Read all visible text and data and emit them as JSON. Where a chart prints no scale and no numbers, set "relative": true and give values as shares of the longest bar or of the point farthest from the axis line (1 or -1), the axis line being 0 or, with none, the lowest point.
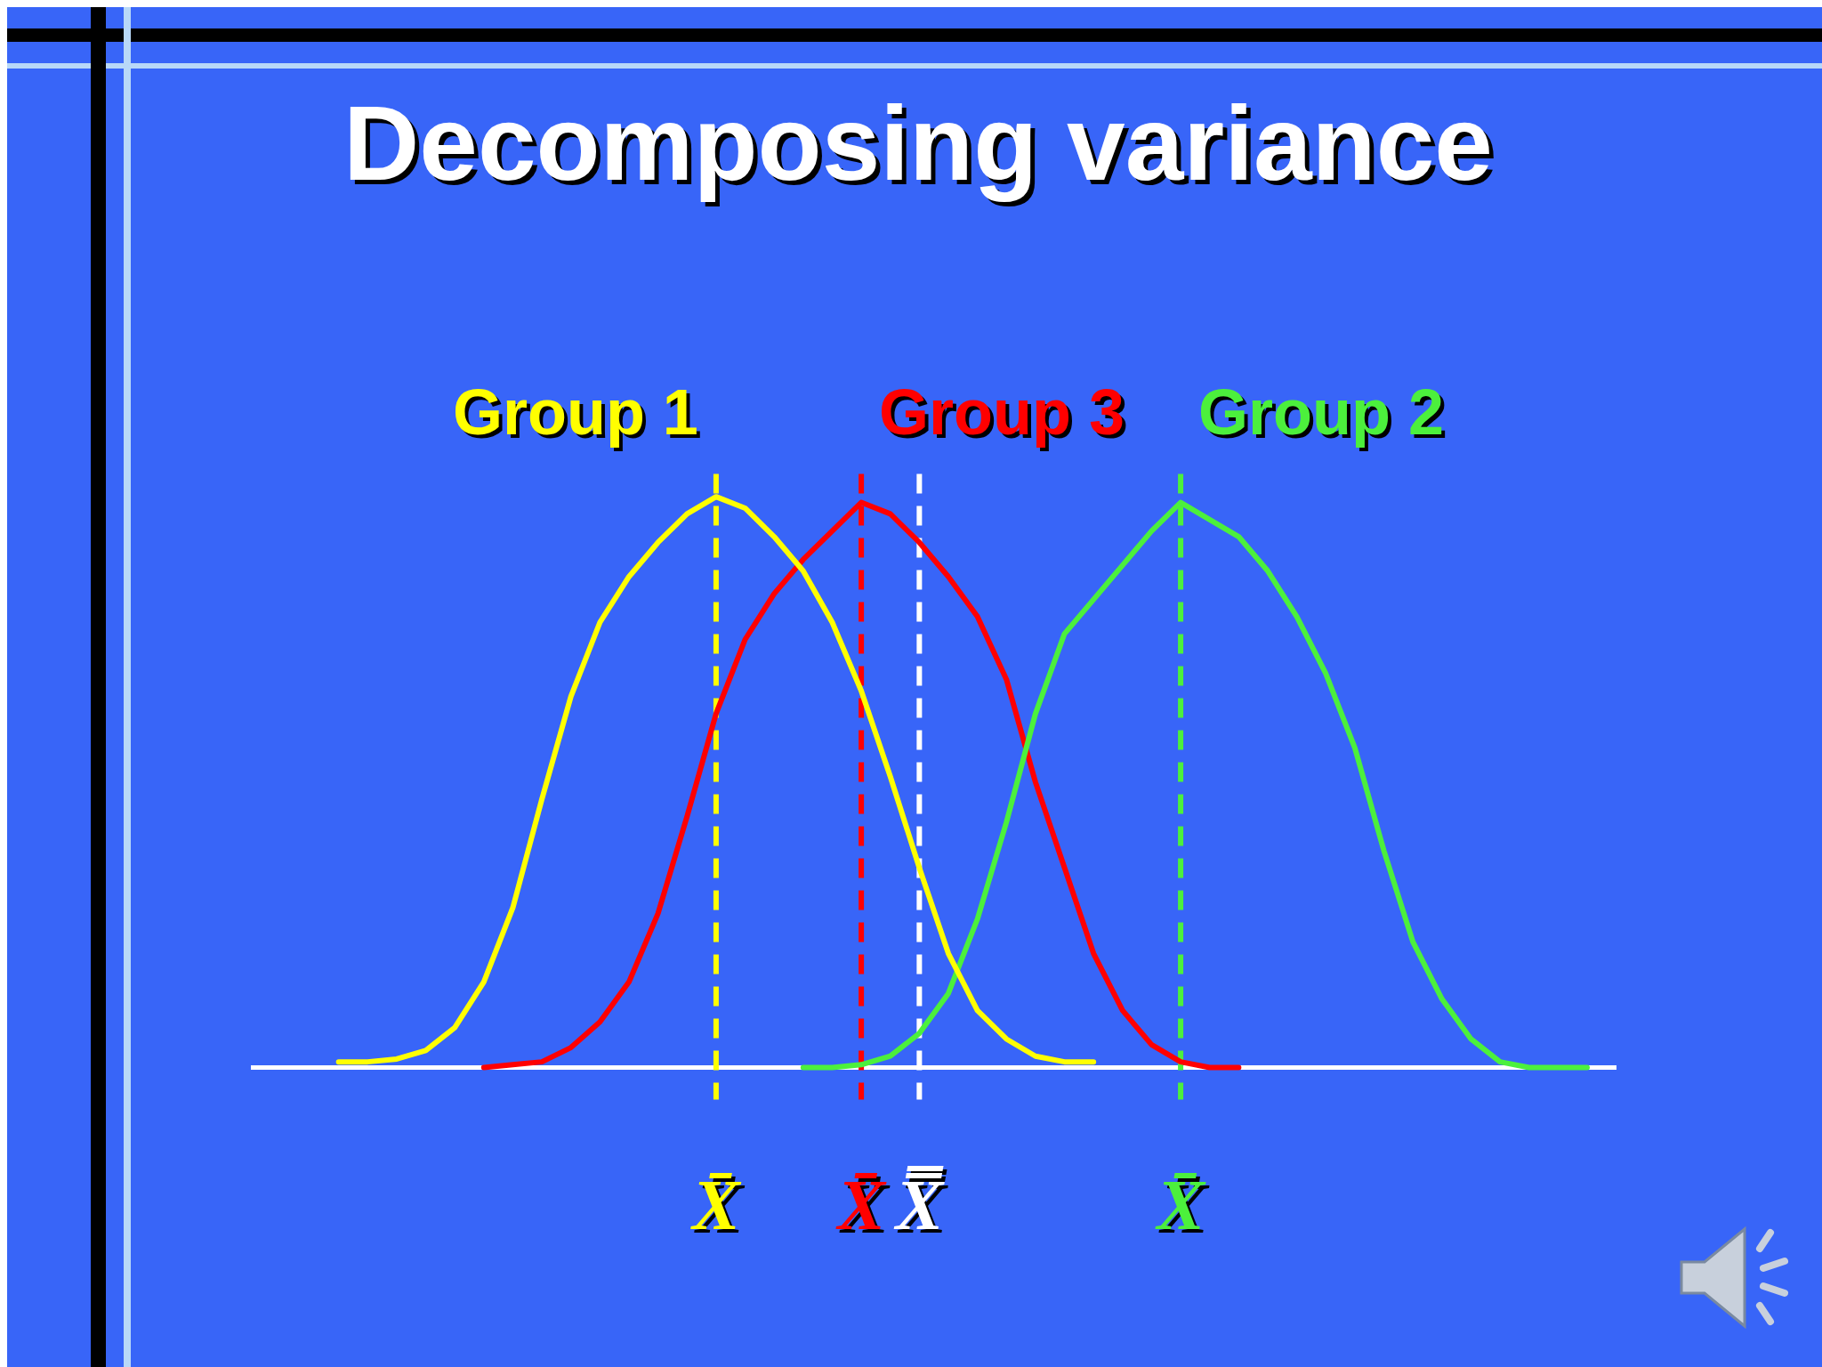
{
  "chart_data": {
    "type": "line",
    "title": "Decomposing variance",
    "relative": true,
    "tick_labels": false,
    "legend": false,
    "marker": "none",
    "categories": [
      null,
      null,
      null,
      null,
      null,
      null,
      null,
      null,
      null,
      null,
      null,
      null,
      null,
      null,
      null,
      null,
      null,
      null,
      null,
      null,
      null,
      null,
      null,
      null,
      null,
      null,
      null,
      null,
      null,
      null,
      null,
      null,
      null,
      null,
      null,
      null,
      null,
      null,
      null,
      null,
      null,
      null,
      null,
      null,
      null
    ],
    "series": [
      {
        "name": "Group 1",
        "color": "#ffff00",
        "values": [
          null,
          0.01,
          0.01,
          0.015,
          0.03,
          0.07,
          0.15,
          0.28,
          0.47,
          0.65,
          0.78,
          0.86,
          0.92,
          0.97,
          1,
          0.98,
          0.93,
          0.87,
          0.78,
          0.66,
          0.51,
          0.35,
          0.2,
          0.1,
          0.05,
          0.02,
          0.01,
          0.01,
          null,
          null,
          null,
          null,
          null,
          null,
          null,
          null,
          null,
          null,
          null,
          null,
          null,
          null,
          null,
          null,
          null
        ]
      },
      {
        "name": "Group 2",
        "color": "#4cf03c",
        "values": [
          null,
          null,
          null,
          null,
          null,
          null,
          null,
          null,
          null,
          null,
          null,
          null,
          null,
          null,
          null,
          null,
          null,
          0,
          0,
          0.005,
          0.02,
          0.06,
          0.13,
          0.26,
          0.43,
          0.62,
          0.76,
          0.82,
          0.88,
          0.94,
          0.99,
          0.96,
          0.93,
          0.87,
          0.79,
          0.69,
          0.56,
          0.38,
          0.22,
          0.12,
          0.05,
          0.01,
          0,
          0,
          0
        ]
      },
      {
        "name": "Group 3",
        "color": "#ff0000",
        "values": [
          null,
          null,
          null,
          null,
          null,
          null,
          0,
          0.005,
          0.01,
          0.035,
          0.08,
          0.15,
          0.27,
          0.44,
          0.62,
          0.75,
          0.83,
          0.89,
          0.94,
          0.99,
          0.97,
          0.92,
          0.86,
          0.79,
          0.68,
          0.5,
          0.35,
          0.2,
          0.1,
          0.04,
          0.01,
          0,
          0,
          null,
          null,
          null,
          null,
          null,
          null,
          null,
          null,
          null,
          null,
          null,
          null
        ]
      }
    ],
    "annotations": [
      "X̄",
      "X̄",
      "X̿",
      "X̄"
    ]
  }
}
